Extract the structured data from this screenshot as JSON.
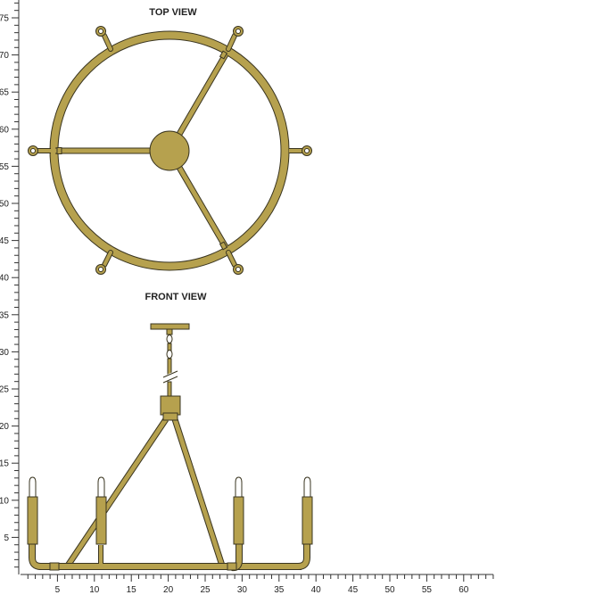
{
  "titles": {
    "top_view": "TOP VIEW",
    "front_view": "FRONT VIEW"
  },
  "ruler": {
    "y_ticks": [
      5,
      10,
      15,
      20,
      25,
      30,
      35,
      40,
      45,
      50,
      55,
      60,
      65,
      70,
      75
    ],
    "x_ticks": [
      5,
      10,
      15,
      20,
      25,
      30,
      35,
      40,
      45,
      50,
      55,
      60
    ],
    "y_range": [
      0,
      79.5
    ],
    "x_range": [
      0,
      64
    ]
  },
  "colors": {
    "metal": "#b6a14e",
    "metal_stroke": "#3a3520",
    "ruler": "#333333",
    "text": "#222222",
    "candle": "#ffffff"
  }
}
